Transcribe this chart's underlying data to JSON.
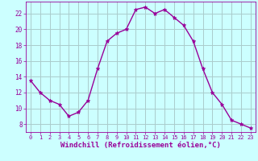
{
  "x": [
    0,
    1,
    2,
    3,
    4,
    5,
    6,
    7,
    8,
    9,
    10,
    11,
    12,
    13,
    14,
    15,
    16,
    17,
    18,
    19,
    20,
    21,
    22,
    23
  ],
  "y": [
    13.5,
    12.0,
    11.0,
    10.5,
    9.0,
    9.5,
    11.0,
    15.0,
    18.5,
    19.5,
    20.0,
    22.5,
    22.8,
    22.0,
    22.5,
    21.5,
    20.5,
    18.5,
    15.0,
    12.0,
    10.5,
    8.5,
    8.0,
    7.5
  ],
  "line_color": "#990099",
  "marker": "*",
  "marker_size": 3.5,
  "bg_color": "#ccffff",
  "grid_color": "#aacccc",
  "xlabel": "Windchill (Refroidissement éolien,°C)",
  "xlabel_color": "#990099",
  "xlim": [
    -0.5,
    23.5
  ],
  "ylim": [
    7,
    23.5
  ],
  "yticks": [
    8,
    10,
    12,
    14,
    16,
    18,
    20,
    22
  ],
  "xticks": [
    0,
    1,
    2,
    3,
    4,
    5,
    6,
    7,
    8,
    9,
    10,
    11,
    12,
    13,
    14,
    15,
    16,
    17,
    18,
    19,
    20,
    21,
    22,
    23
  ],
  "tick_color": "#990099",
  "xlabel_fontsize": 6.5,
  "line_width": 1.0
}
